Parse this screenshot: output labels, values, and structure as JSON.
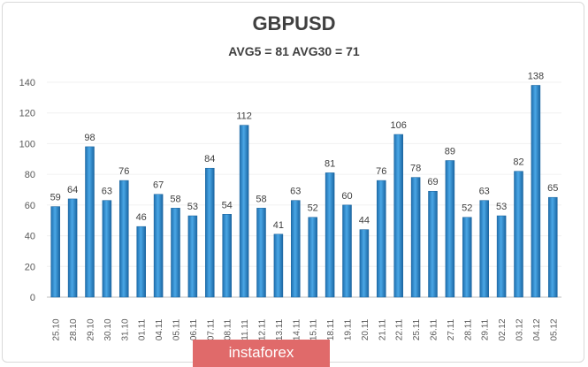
{
  "chart_data": {
    "type": "bar",
    "title": "GBPUSD",
    "subtitle": "AVG5 = 81 AVG30 = 71",
    "categories": [
      "25.10",
      "28.10",
      "29.10",
      "30.10",
      "31.10",
      "01.11",
      "04.11",
      "05.11",
      "06.11",
      "07.11",
      "08.11",
      "11.11",
      "12.11",
      "13.11",
      "14.11",
      "15.11",
      "18.11",
      "19.11",
      "20.11",
      "21.11",
      "22.11",
      "25.11",
      "26.11",
      "27.11",
      "28.11",
      "29.11",
      "02.12",
      "03.12",
      "04.12",
      "05.12"
    ],
    "values": [
      59,
      64,
      98,
      63,
      76,
      46,
      67,
      58,
      53,
      84,
      54,
      112,
      58,
      41,
      63,
      52,
      81,
      60,
      44,
      76,
      106,
      78,
      69,
      89,
      52,
      63,
      53,
      82,
      138,
      65
    ],
    "yticks": [
      0,
      20,
      40,
      60,
      80,
      100,
      120,
      140
    ],
    "ylim": [
      0,
      140
    ],
    "xlabel": "",
    "ylabel": "",
    "bar_color": "#2e8ccf"
  },
  "logo": "instaforex"
}
